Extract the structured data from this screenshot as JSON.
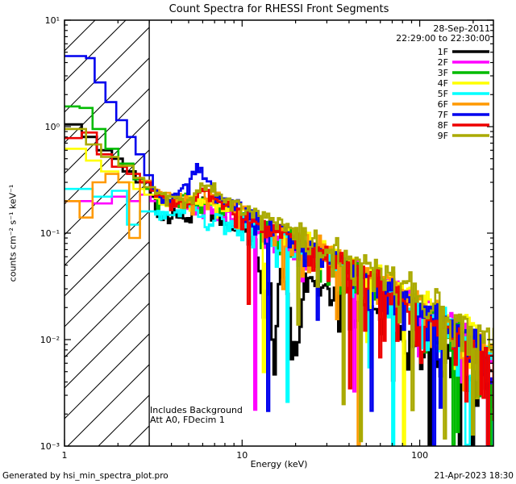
{
  "chart_data": {
    "type": "line",
    "title": "Count Spectra for RHESSI Front Segments",
    "xlabel": "Energy (keV)",
    "ylabel": "counts cm⁻² s⁻¹ keV⁻¹",
    "xscale": "log",
    "yscale": "log",
    "xlim": [
      1,
      260
    ],
    "ylim": [
      0.001,
      10
    ],
    "x_ticks": [
      {
        "v": 1,
        "label": "1"
      },
      {
        "v": 10,
        "label": "10"
      },
      {
        "v": 100,
        "label": "100"
      }
    ],
    "y_ticks": [
      {
        "v": 10,
        "label": "10¹"
      },
      {
        "v": 1,
        "label": "10⁰"
      },
      {
        "v": 0.1,
        "label": "10⁻¹"
      },
      {
        "v": 0.01,
        "label": "10⁻²"
      },
      {
        "v": 0.001,
        "label": "10⁻³"
      }
    ],
    "hatch_region": {
      "x0": 1,
      "x1": 3
    },
    "annotations": {
      "date": "28-Sep-2011",
      "time_range": "22:29:00 to 22:30:00",
      "note1": "Includes Background",
      "note2": "Att A0, FDecim 1"
    },
    "footer": {
      "left": "Generated by hsi_min_spectra_plot.pro",
      "right": "21-Apr-2023 18:30"
    },
    "legend_position": "top-right",
    "noise": {
      "seed": 12,
      "sigma_lo": 0.1,
      "sigma_hi": 0.55,
      "dip_prob": 0.05,
      "dip_depth": 1.5
    },
    "series": [
      {
        "name": "1F",
        "color": "#000000",
        "width": 3,
        "points": [
          [
            1,
            1.05
          ],
          [
            1.25,
            0.8
          ],
          [
            1.5,
            0.6
          ],
          [
            1.8,
            0.5
          ],
          [
            2.1,
            0.38
          ],
          [
            2.5,
            0.3
          ],
          [
            3,
            0.22
          ],
          [
            3.5,
            0.13
          ],
          [
            4,
            0.17
          ],
          [
            5,
            0.15
          ],
          [
            6,
            0.21
          ],
          [
            7,
            0.16
          ],
          [
            8,
            0.14
          ],
          [
            10,
            0.12
          ],
          [
            12,
            0.08
          ],
          [
            13,
            0.015
          ],
          [
            14,
            0.06
          ],
          [
            15,
            0.004
          ],
          [
            16,
            0.05
          ],
          [
            18,
            0.025
          ],
          [
            20,
            0.006
          ],
          [
            22,
            0.04
          ],
          [
            25,
            0.035
          ],
          [
            30,
            0.03
          ],
          [
            40,
            0.025
          ],
          [
            50,
            0.02
          ],
          [
            70,
            0.015
          ],
          [
            100,
            0.011
          ],
          [
            140,
            0.008
          ],
          [
            200,
            0.0055
          ],
          [
            260,
            0.004
          ]
        ]
      },
      {
        "name": "2F",
        "color": "#ff00ff",
        "width": 2.6,
        "points": [
          [
            1,
            0.2
          ],
          [
            1.4,
            0.19
          ],
          [
            1.8,
            0.22
          ],
          [
            2.2,
            0.2
          ],
          [
            2.6,
            0.23
          ],
          [
            3,
            0.2
          ],
          [
            4,
            0.19
          ],
          [
            5,
            0.21
          ],
          [
            6,
            0.18
          ],
          [
            8,
            0.16
          ],
          [
            10,
            0.14
          ],
          [
            15,
            0.1
          ],
          [
            20,
            0.085
          ],
          [
            30,
            0.06
          ],
          [
            40,
            0.05
          ],
          [
            60,
            0.035
          ],
          [
            80,
            0.026
          ],
          [
            100,
            0.021
          ],
          [
            140,
            0.015
          ],
          [
            200,
            0.01
          ],
          [
            260,
            0.007
          ]
        ]
      },
      {
        "name": "3F",
        "color": "#00bb00",
        "width": 2.6,
        "points": [
          [
            1,
            1.55
          ],
          [
            1.2,
            1.5
          ],
          [
            1.4,
            0.95
          ],
          [
            1.7,
            0.62
          ],
          [
            2,
            0.45
          ],
          [
            2.4,
            0.32
          ],
          [
            2.8,
            0.26
          ],
          [
            3.2,
            0.22
          ],
          [
            4,
            0.2
          ],
          [
            5,
            0.24
          ],
          [
            6,
            0.2
          ],
          [
            8,
            0.17
          ],
          [
            10,
            0.15
          ],
          [
            15,
            0.105
          ],
          [
            20,
            0.085
          ],
          [
            30,
            0.06
          ],
          [
            40,
            0.048
          ],
          [
            60,
            0.033
          ],
          [
            80,
            0.025
          ],
          [
            100,
            0.02
          ],
          [
            140,
            0.014
          ],
          [
            200,
            0.0095
          ],
          [
            260,
            0.0065
          ]
        ]
      },
      {
        "name": "4F",
        "color": "#ffff00",
        "width": 2.6,
        "points": [
          [
            1,
            0.62
          ],
          [
            1.3,
            0.48
          ],
          [
            1.6,
            0.38
          ],
          [
            2,
            0.3
          ],
          [
            2.4,
            0.26
          ],
          [
            2.8,
            0.23
          ],
          [
            3.2,
            0.21
          ],
          [
            4,
            0.2
          ],
          [
            5,
            0.22
          ],
          [
            6,
            0.19
          ],
          [
            8,
            0.17
          ],
          [
            10,
            0.15
          ],
          [
            15,
            0.11
          ],
          [
            20,
            0.09
          ],
          [
            30,
            0.068
          ],
          [
            40,
            0.055
          ],
          [
            60,
            0.038
          ],
          [
            80,
            0.029
          ],
          [
            100,
            0.024
          ],
          [
            140,
            0.017
          ],
          [
            200,
            0.012
          ],
          [
            260,
            0.008
          ]
        ]
      },
      {
        "name": "5F",
        "color": "#00ffff",
        "width": 2.6,
        "points": [
          [
            1,
            0.26
          ],
          [
            1.4,
            0.22
          ],
          [
            1.8,
            0.25
          ],
          [
            2.2,
            0.12
          ],
          [
            2.6,
            0.16
          ],
          [
            3,
            0.16
          ],
          [
            4,
            0.15
          ],
          [
            5,
            0.18
          ],
          [
            6,
            0.15
          ],
          [
            8,
            0.14
          ],
          [
            10,
            0.125
          ],
          [
            15,
            0.09
          ],
          [
            20,
            0.075
          ],
          [
            30,
            0.055
          ],
          [
            40,
            0.044
          ],
          [
            60,
            0.03
          ],
          [
            80,
            0.023
          ],
          [
            100,
            0.018
          ],
          [
            140,
            0.013
          ],
          [
            200,
            0.0085
          ],
          [
            260,
            0.0055
          ]
        ]
      },
      {
        "name": "6F",
        "color": "#ff9900",
        "width": 2.6,
        "points": [
          [
            1,
            0.2
          ],
          [
            1.2,
            0.14
          ],
          [
            1.4,
            0.3
          ],
          [
            1.7,
            0.36
          ],
          [
            2,
            0.3
          ],
          [
            2.3,
            0.09
          ],
          [
            2.6,
            0.31
          ],
          [
            3,
            0.26
          ],
          [
            4,
            0.22
          ],
          [
            5,
            0.2
          ],
          [
            6,
            0.26
          ],
          [
            8,
            0.2
          ],
          [
            10,
            0.17
          ],
          [
            15,
            0.115
          ],
          [
            20,
            0.095
          ],
          [
            30,
            0.068
          ],
          [
            40,
            0.054
          ],
          [
            60,
            0.037
          ],
          [
            80,
            0.028
          ],
          [
            100,
            0.022
          ],
          [
            140,
            0.015
          ],
          [
            200,
            0.01
          ],
          [
            260,
            0.007
          ]
        ]
      },
      {
        "name": "7F",
        "color": "#0000ee",
        "width": 2.6,
        "points": [
          [
            1,
            4.6
          ],
          [
            1.3,
            4.4
          ],
          [
            1.45,
            2.6
          ],
          [
            1.7,
            1.7
          ],
          [
            1.95,
            1.15
          ],
          [
            2.2,
            0.8
          ],
          [
            2.5,
            0.55
          ],
          [
            2.8,
            0.35
          ],
          [
            3.1,
            0.25
          ],
          [
            3.6,
            0.2
          ],
          [
            4.2,
            0.23
          ],
          [
            5,
            0.3
          ],
          [
            5.6,
            0.46
          ],
          [
            6.2,
            0.3
          ],
          [
            7,
            0.24
          ],
          [
            8,
            0.2
          ],
          [
            10,
            0.17
          ],
          [
            15,
            0.115
          ],
          [
            20,
            0.09
          ],
          [
            30,
            0.063
          ],
          [
            40,
            0.05
          ],
          [
            60,
            0.034
          ],
          [
            80,
            0.026
          ],
          [
            100,
            0.02
          ],
          [
            140,
            0.014
          ],
          [
            200,
            0.009
          ],
          [
            260,
            0.006
          ]
        ]
      },
      {
        "name": "8F",
        "color": "#ee0000",
        "width": 2.6,
        "points": [
          [
            1,
            0.78
          ],
          [
            1.25,
            0.88
          ],
          [
            1.5,
            0.55
          ],
          [
            1.8,
            0.42
          ],
          [
            2.2,
            0.36
          ],
          [
            2.6,
            0.3
          ],
          [
            3,
            0.25
          ],
          [
            4,
            0.2
          ],
          [
            5,
            0.18
          ],
          [
            6,
            0.26
          ],
          [
            7,
            0.2
          ],
          [
            8,
            0.18
          ],
          [
            10,
            0.15
          ],
          [
            15,
            0.105
          ],
          [
            20,
            0.085
          ],
          [
            30,
            0.06
          ],
          [
            40,
            0.048
          ],
          [
            60,
            0.033
          ],
          [
            80,
            0.024
          ],
          [
            100,
            0.018
          ],
          [
            140,
            0.012
          ],
          [
            200,
            0.0075
          ],
          [
            260,
            0.005
          ]
        ]
      },
      {
        "name": "9F",
        "color": "#aaaa00",
        "width": 2.6,
        "points": [
          [
            1,
            0.95
          ],
          [
            1.3,
            0.68
          ],
          [
            1.6,
            0.52
          ],
          [
            2,
            0.43
          ],
          [
            2.4,
            0.33
          ],
          [
            2.8,
            0.27
          ],
          [
            3.2,
            0.24
          ],
          [
            4,
            0.22
          ],
          [
            5,
            0.2
          ],
          [
            6,
            0.3
          ],
          [
            7,
            0.24
          ],
          [
            8,
            0.21
          ],
          [
            10,
            0.18
          ],
          [
            15,
            0.13
          ],
          [
            20,
            0.105
          ],
          [
            30,
            0.075
          ],
          [
            40,
            0.06
          ],
          [
            60,
            0.042
          ],
          [
            80,
            0.032
          ],
          [
            100,
            0.026
          ],
          [
            140,
            0.018
          ],
          [
            200,
            0.013
          ],
          [
            260,
            0.009
          ]
        ]
      }
    ]
  }
}
